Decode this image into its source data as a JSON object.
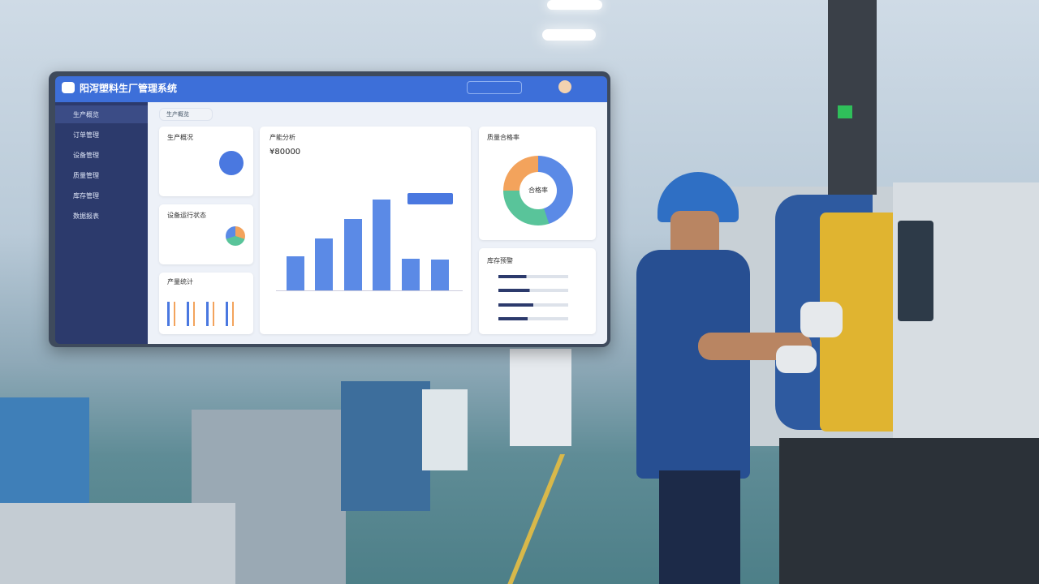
{
  "header": {
    "title": "阳泻塑料生厂管理系统"
  },
  "sidebar": {
    "items": [
      "生产概览",
      "订单管理",
      "设备管理",
      "质量管理",
      "库存管理",
      "数据报表"
    ]
  },
  "breadcrumb": "生产概览",
  "cards": {
    "overview": {
      "title": "生产概况"
    },
    "equipment": {
      "title": "设备运行状态"
    },
    "output": {
      "title": "产量统计"
    },
    "capacity": {
      "title": "产能分析",
      "value": "¥80000"
    },
    "quality": {
      "title": "质量合格率",
      "center": "合格率"
    },
    "inventory": {
      "title": "库存预警"
    }
  }
}
